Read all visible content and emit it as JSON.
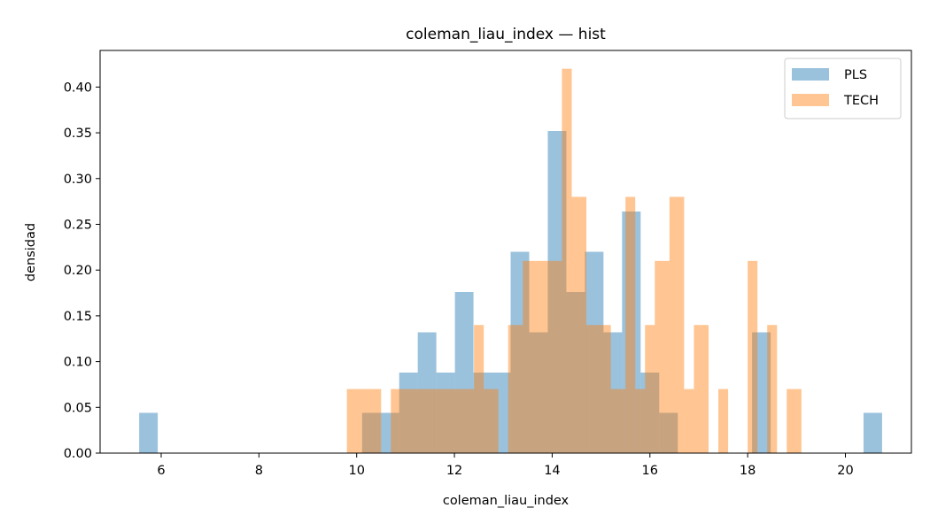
{
  "chart_data": {
    "type": "bar",
    "title": "coleman_liau_index — hist",
    "xlabel": "coleman_liau_index",
    "ylabel": "densidad",
    "xlim": [
      4.75,
      21.35
    ],
    "ylim": [
      0,
      0.44
    ],
    "xticks": [
      6,
      8,
      10,
      12,
      14,
      16,
      18,
      20
    ],
    "yticks": [
      0.0,
      0.05,
      0.1,
      0.15,
      0.2,
      0.25,
      0.3,
      0.35,
      0.4
    ],
    "grid": false,
    "legend_position": "top-right",
    "series": [
      {
        "name": "PLS",
        "color": "#1f77b4",
        "opacity": 0.45,
        "bin_edges": [
          5.55,
          5.93,
          6.31,
          6.69,
          7.07,
          7.45,
          7.83,
          8.21,
          8.59,
          8.97,
          9.35,
          9.73,
          10.11,
          10.49,
          10.87,
          11.25,
          11.63,
          12.01,
          12.39,
          12.77,
          13.15,
          13.53,
          13.91,
          14.29,
          14.67,
          15.05,
          15.43,
          15.81,
          16.19,
          16.57,
          16.95,
          17.33,
          17.71,
          18.09,
          18.47,
          18.85,
          19.23,
          19.61,
          19.99,
          20.37,
          20.75
        ],
        "values": [
          0.044,
          0,
          0,
          0,
          0,
          0,
          0,
          0,
          0,
          0,
          0,
          0,
          0.044,
          0.044,
          0.088,
          0.132,
          0.088,
          0.176,
          0.088,
          0.088,
          0.22,
          0.132,
          0.352,
          0.176,
          0.22,
          0.132,
          0.264,
          0.088,
          0.044,
          0,
          0,
          0,
          0,
          0.132,
          0,
          0,
          0,
          0,
          0,
          0.044
        ]
      },
      {
        "name": "TECH",
        "color": "#ff7f0e",
        "opacity": 0.45,
        "bin_edges": [
          9.8,
          10.1,
          10.5,
          10.7,
          11.2,
          11.6,
          12.4,
          12.6,
          12.9,
          13.1,
          13.4,
          13.9,
          14.2,
          14.4,
          14.7,
          15.2,
          15.5,
          15.7,
          15.9,
          16.1,
          16.4,
          16.7,
          16.9,
          17.2,
          17.4,
          17.6,
          18.0,
          18.2,
          18.4,
          18.6,
          18.8,
          19.1,
          19.3
        ],
        "values": [
          0.07,
          0.07,
          0,
          0.07,
          0.07,
          0.07,
          0.14,
          0.07,
          0,
          0.14,
          0.21,
          0.21,
          0.42,
          0.28,
          0.14,
          0.07,
          0.28,
          0.07,
          0.14,
          0.21,
          0.28,
          0.07,
          0.14,
          0,
          0.07,
          0,
          0.21,
          0,
          0.14,
          0,
          0.07,
          0
        ]
      }
    ]
  }
}
